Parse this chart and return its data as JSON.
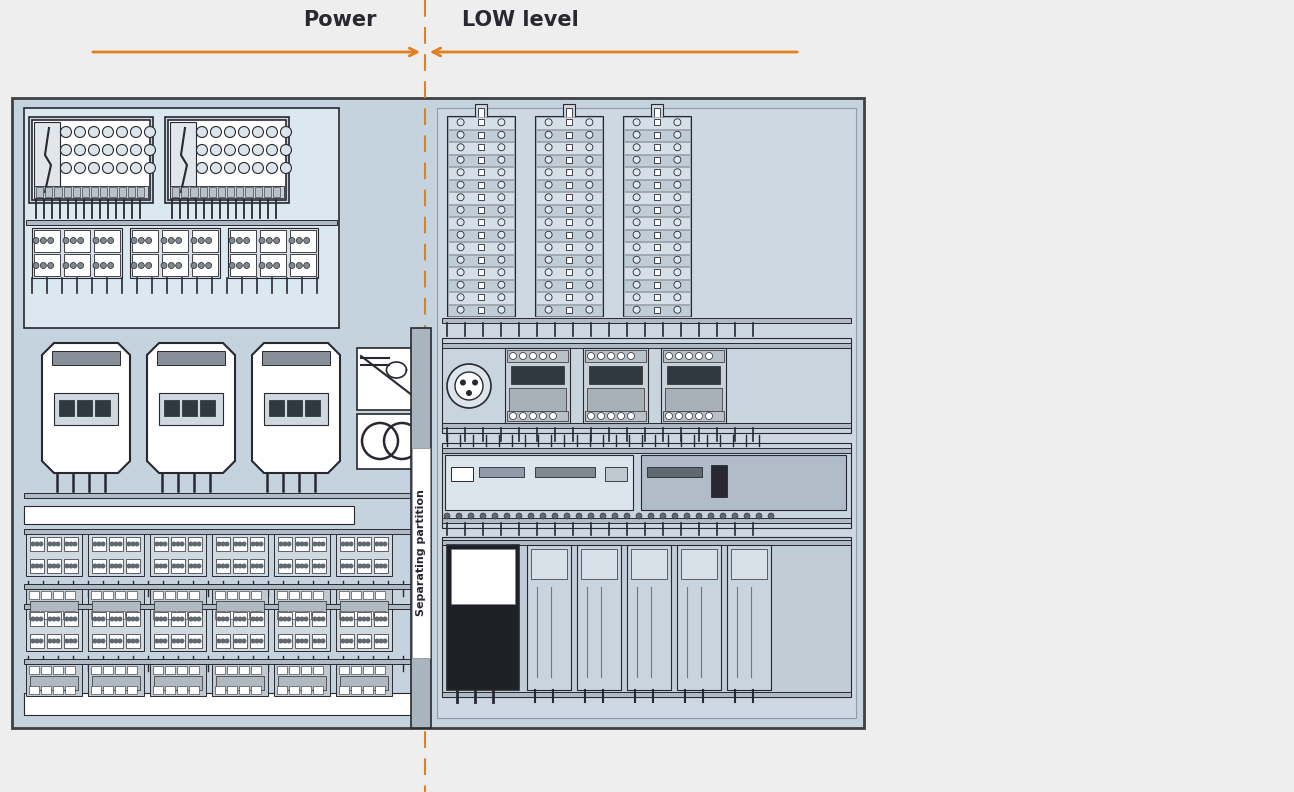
{
  "bg_color": "#eeeeee",
  "panel_bg": "#c5d3df",
  "panel_left_bg": "#c5d3df",
  "panel_right_bg": "#c5d3df",
  "sep_bg": "#dce5ec",
  "white_bg": "#e8edf2",
  "panel_border": "#404040",
  "white": "#ffffff",
  "gray_light": "#d0d8e0",
  "gray_med": "#9aa5ae",
  "gray_dark": "#505860",
  "dark": "#282830",
  "orange": "#e08020",
  "title_power": "Power",
  "title_low": "LOW level",
  "sep_text": "Separating partition",
  "fig_width": 12.94,
  "fig_height": 7.92
}
